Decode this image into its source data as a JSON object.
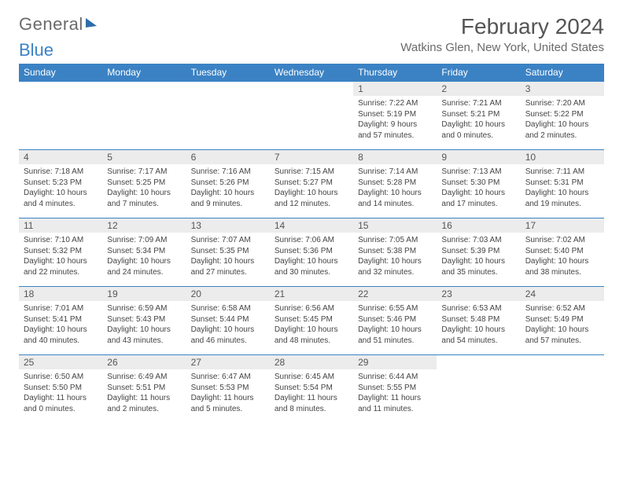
{
  "brand": {
    "text1": "General",
    "text2": "Blue"
  },
  "header": {
    "month_year": "February 2024",
    "location": "Watkins Glen, New York, United States"
  },
  "day_names": [
    "Sunday",
    "Monday",
    "Tuesday",
    "Wednesday",
    "Thursday",
    "Friday",
    "Saturday"
  ],
  "colors": {
    "header_bg": "#3b82c4",
    "daynum_bg": "#ececec",
    "row_border": "#3b82c4",
    "text": "#444444"
  },
  "layout": {
    "first_day_col": 4,
    "days_in_month": 29,
    "columns": 7,
    "rows": 5
  },
  "days": [
    {
      "n": "1",
      "sr": "Sunrise: 7:22 AM",
      "ss": "Sunset: 5:19 PM",
      "dl": "Daylight: 9 hours and 57 minutes."
    },
    {
      "n": "2",
      "sr": "Sunrise: 7:21 AM",
      "ss": "Sunset: 5:21 PM",
      "dl": "Daylight: 10 hours and 0 minutes."
    },
    {
      "n": "3",
      "sr": "Sunrise: 7:20 AM",
      "ss": "Sunset: 5:22 PM",
      "dl": "Daylight: 10 hours and 2 minutes."
    },
    {
      "n": "4",
      "sr": "Sunrise: 7:18 AM",
      "ss": "Sunset: 5:23 PM",
      "dl": "Daylight: 10 hours and 4 minutes."
    },
    {
      "n": "5",
      "sr": "Sunrise: 7:17 AM",
      "ss": "Sunset: 5:25 PM",
      "dl": "Daylight: 10 hours and 7 minutes."
    },
    {
      "n": "6",
      "sr": "Sunrise: 7:16 AM",
      "ss": "Sunset: 5:26 PM",
      "dl": "Daylight: 10 hours and 9 minutes."
    },
    {
      "n": "7",
      "sr": "Sunrise: 7:15 AM",
      "ss": "Sunset: 5:27 PM",
      "dl": "Daylight: 10 hours and 12 minutes."
    },
    {
      "n": "8",
      "sr": "Sunrise: 7:14 AM",
      "ss": "Sunset: 5:28 PM",
      "dl": "Daylight: 10 hours and 14 minutes."
    },
    {
      "n": "9",
      "sr": "Sunrise: 7:13 AM",
      "ss": "Sunset: 5:30 PM",
      "dl": "Daylight: 10 hours and 17 minutes."
    },
    {
      "n": "10",
      "sr": "Sunrise: 7:11 AM",
      "ss": "Sunset: 5:31 PM",
      "dl": "Daylight: 10 hours and 19 minutes."
    },
    {
      "n": "11",
      "sr": "Sunrise: 7:10 AM",
      "ss": "Sunset: 5:32 PM",
      "dl": "Daylight: 10 hours and 22 minutes."
    },
    {
      "n": "12",
      "sr": "Sunrise: 7:09 AM",
      "ss": "Sunset: 5:34 PM",
      "dl": "Daylight: 10 hours and 24 minutes."
    },
    {
      "n": "13",
      "sr": "Sunrise: 7:07 AM",
      "ss": "Sunset: 5:35 PM",
      "dl": "Daylight: 10 hours and 27 minutes."
    },
    {
      "n": "14",
      "sr": "Sunrise: 7:06 AM",
      "ss": "Sunset: 5:36 PM",
      "dl": "Daylight: 10 hours and 30 minutes."
    },
    {
      "n": "15",
      "sr": "Sunrise: 7:05 AM",
      "ss": "Sunset: 5:38 PM",
      "dl": "Daylight: 10 hours and 32 minutes."
    },
    {
      "n": "16",
      "sr": "Sunrise: 7:03 AM",
      "ss": "Sunset: 5:39 PM",
      "dl": "Daylight: 10 hours and 35 minutes."
    },
    {
      "n": "17",
      "sr": "Sunrise: 7:02 AM",
      "ss": "Sunset: 5:40 PM",
      "dl": "Daylight: 10 hours and 38 minutes."
    },
    {
      "n": "18",
      "sr": "Sunrise: 7:01 AM",
      "ss": "Sunset: 5:41 PM",
      "dl": "Daylight: 10 hours and 40 minutes."
    },
    {
      "n": "19",
      "sr": "Sunrise: 6:59 AM",
      "ss": "Sunset: 5:43 PM",
      "dl": "Daylight: 10 hours and 43 minutes."
    },
    {
      "n": "20",
      "sr": "Sunrise: 6:58 AM",
      "ss": "Sunset: 5:44 PM",
      "dl": "Daylight: 10 hours and 46 minutes."
    },
    {
      "n": "21",
      "sr": "Sunrise: 6:56 AM",
      "ss": "Sunset: 5:45 PM",
      "dl": "Daylight: 10 hours and 48 minutes."
    },
    {
      "n": "22",
      "sr": "Sunrise: 6:55 AM",
      "ss": "Sunset: 5:46 PM",
      "dl": "Daylight: 10 hours and 51 minutes."
    },
    {
      "n": "23",
      "sr": "Sunrise: 6:53 AM",
      "ss": "Sunset: 5:48 PM",
      "dl": "Daylight: 10 hours and 54 minutes."
    },
    {
      "n": "24",
      "sr": "Sunrise: 6:52 AM",
      "ss": "Sunset: 5:49 PM",
      "dl": "Daylight: 10 hours and 57 minutes."
    },
    {
      "n": "25",
      "sr": "Sunrise: 6:50 AM",
      "ss": "Sunset: 5:50 PM",
      "dl": "Daylight: 11 hours and 0 minutes."
    },
    {
      "n": "26",
      "sr": "Sunrise: 6:49 AM",
      "ss": "Sunset: 5:51 PM",
      "dl": "Daylight: 11 hours and 2 minutes."
    },
    {
      "n": "27",
      "sr": "Sunrise: 6:47 AM",
      "ss": "Sunset: 5:53 PM",
      "dl": "Daylight: 11 hours and 5 minutes."
    },
    {
      "n": "28",
      "sr": "Sunrise: 6:45 AM",
      "ss": "Sunset: 5:54 PM",
      "dl": "Daylight: 11 hours and 8 minutes."
    },
    {
      "n": "29",
      "sr": "Sunrise: 6:44 AM",
      "ss": "Sunset: 5:55 PM",
      "dl": "Daylight: 11 hours and 11 minutes."
    }
  ]
}
